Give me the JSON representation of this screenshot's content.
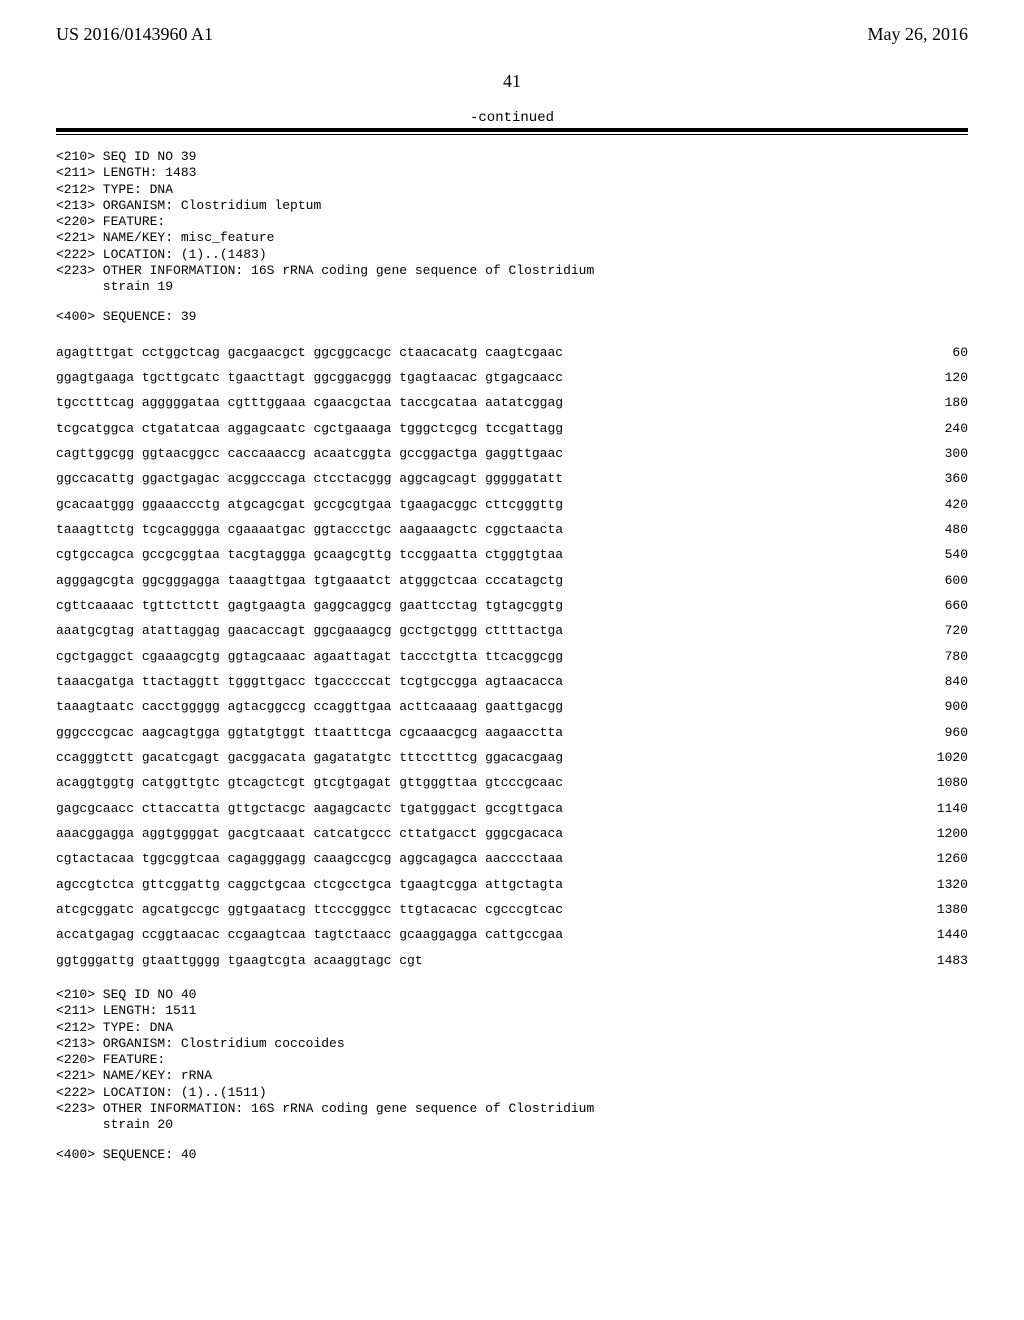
{
  "header": {
    "left": "US 2016/0143960 A1",
    "right": "May 26, 2016"
  },
  "page_number": "41",
  "continued": "-continued",
  "entry1": {
    "meta": [
      "<210> SEQ ID NO 39",
      "<211> LENGTH: 1483",
      "<212> TYPE: DNA",
      "<213> ORGANISM: Clostridium leptum",
      "<220> FEATURE:",
      "<221> NAME/KEY: misc_feature",
      "<222> LOCATION: (1)..(1483)",
      "<223> OTHER INFORMATION: 16S rRNA coding gene sequence of Clostridium",
      "      strain 19"
    ],
    "seq_label": "<400> SEQUENCE: 39",
    "rows": [
      {
        "t": "agagtttgat cctggctcag gacgaacgct ggcggcacgc ctaacacatg caagtcgaac",
        "n": "60"
      },
      {
        "t": "ggagtgaaga tgcttgcatc tgaacttagt ggcggacggg tgagtaacac gtgagcaacc",
        "n": "120"
      },
      {
        "t": "tgcctttcag agggggataa cgtttggaaa cgaacgctaa taccgcataa aatatcggag",
        "n": "180"
      },
      {
        "t": "tcgcatggca ctgatatcaa aggagcaatc cgctgaaaga tgggctcgcg tccgattagg",
        "n": "240"
      },
      {
        "t": "cagttggcgg ggtaacggcc caccaaaccg acaatcggta gccggactga gaggttgaac",
        "n": "300"
      },
      {
        "t": "ggccacattg ggactgagac acggcccaga ctcctacggg aggcagcagt gggggatatt",
        "n": "360"
      },
      {
        "t": "gcacaatggg ggaaaccctg atgcagcgat gccgcgtgaa tgaagacggc cttcgggttg",
        "n": "420"
      },
      {
        "t": "taaagttctg tcgcagggga cgaaaatgac ggtaccctgc aagaaagctc cggctaacta",
        "n": "480"
      },
      {
        "t": "cgtgccagca gccgcggtaa tacgtaggga gcaagcgttg tccggaatta ctgggtgtaa",
        "n": "540"
      },
      {
        "t": "agggagcgta ggcgggagga taaagttgaa tgtgaaatct atgggctcaa cccatagctg",
        "n": "600"
      },
      {
        "t": "cgttcaaaac tgttcttctt gagtgaagta gaggcaggcg gaattcctag tgtagcggtg",
        "n": "660"
      },
      {
        "t": "aaatgcgtag atattaggag gaacaccagt ggcgaaagcg gcctgctggg cttttactga",
        "n": "720"
      },
      {
        "t": "cgctgaggct cgaaagcgtg ggtagcaaac agaattagat taccctgtta ttcacggcgg",
        "n": "780"
      },
      {
        "t": "taaacgatga ttactaggtt tgggttgacc tgacccccat tcgtgccgga agtaacacca",
        "n": "840"
      },
      {
        "t": "taaagtaatc cacctggggg agtacggccg ccaggttgaa acttcaaaag gaattgacgg",
        "n": "900"
      },
      {
        "t": "gggcccgcac aagcagtgga ggtatgtggt ttaatttcga cgcaaacgcg aagaacctta",
        "n": "960"
      },
      {
        "t": "ccagggtctt gacatcgagt gacggacata gagatatgtc tttcctttcg ggacacgaag",
        "n": "1020"
      },
      {
        "t": "acaggtggtg catggttgtc gtcagctcgt gtcgtgagat gttgggttaa gtcccgcaac",
        "n": "1080"
      },
      {
        "t": "gagcgcaacc cttaccatta gttgctacgc aagagcactc tgatgggact gccgttgaca",
        "n": "1140"
      },
      {
        "t": "aaacggagga aggtggggat gacgtcaaat catcatgccc cttatgacct gggcgacaca",
        "n": "1200"
      },
      {
        "t": "cgtactacaa tggcggtcaa cagagggagg caaagccgcg aggcagagca aacccctaaa",
        "n": "1260"
      },
      {
        "t": "agccgtctca gttcggattg caggctgcaa ctcgcctgca tgaagtcgga attgctagta",
        "n": "1320"
      },
      {
        "t": "atcgcggatc agcatgccgc ggtgaatacg ttcccgggcc ttgtacacac cgcccgtcac",
        "n": "1380"
      },
      {
        "t": "accatgagag ccggtaacac ccgaagtcaa tagtctaacc gcaaggagga cattgccgaa",
        "n": "1440"
      },
      {
        "t": "ggtgggattg gtaattgggg tgaagtcgta acaaggtagc cgt",
        "n": "1483"
      }
    ]
  },
  "entry2": {
    "meta": [
      "<210> SEQ ID NO 40",
      "<211> LENGTH: 1511",
      "<212> TYPE: DNA",
      "<213> ORGANISM: Clostridium coccoides",
      "<220> FEATURE:",
      "<221> NAME/KEY: rRNA",
      "<222> LOCATION: (1)..(1511)",
      "<223> OTHER INFORMATION: 16S rRNA coding gene sequence of Clostridium",
      "      strain 20"
    ],
    "seq_label": "<400> SEQUENCE: 40"
  }
}
